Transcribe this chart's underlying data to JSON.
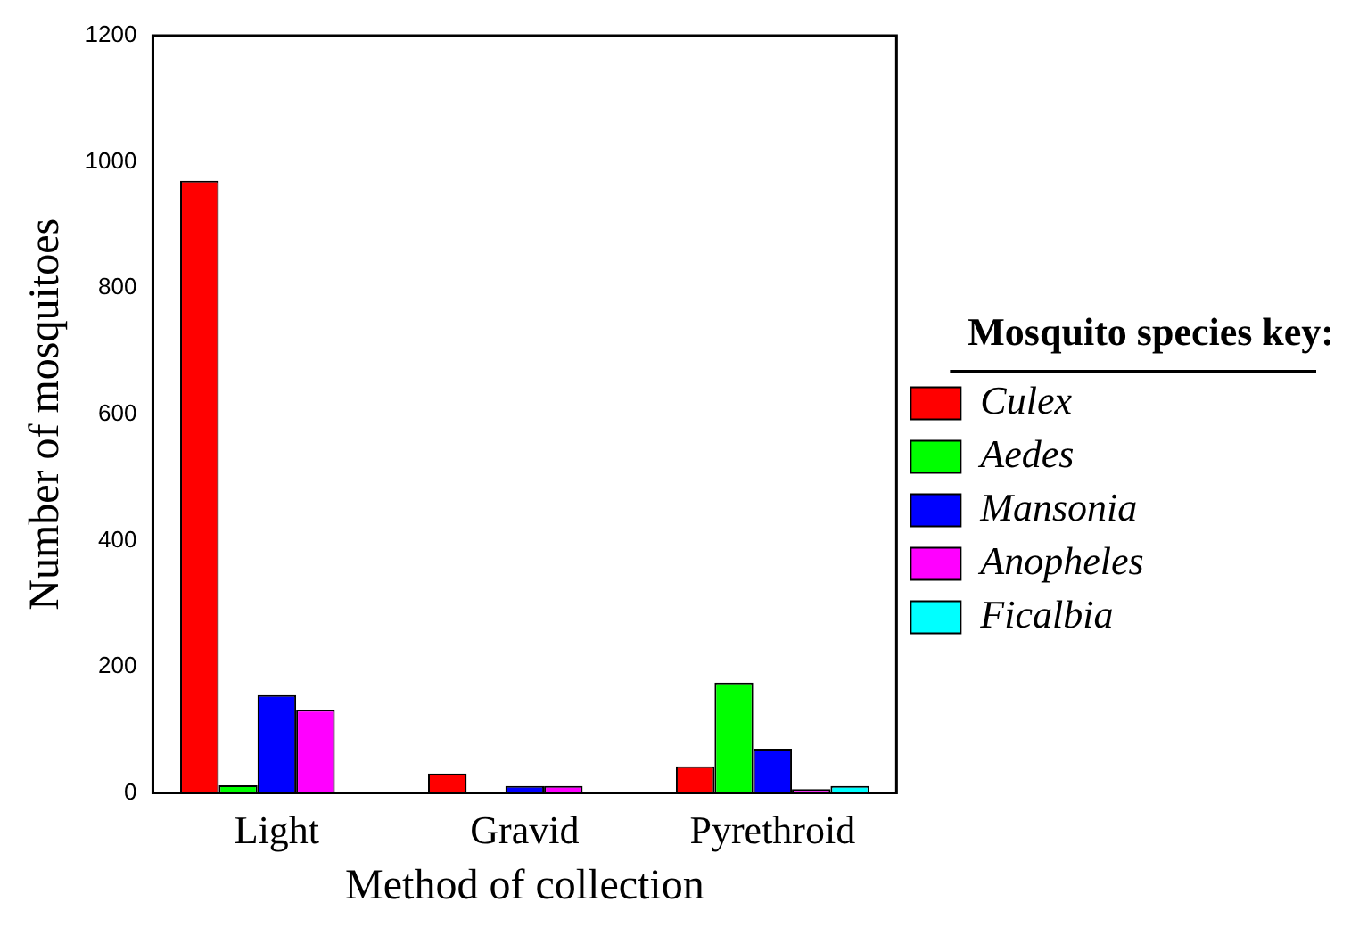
{
  "chart_data": {
    "type": "bar",
    "xlabel": "Method of collection",
    "ylabel": "Number of mosquitoes",
    "legend_title": "Mosquito species key:",
    "categories": [
      "Light",
      "Gravid",
      "Pyrethroid"
    ],
    "series": [
      {
        "name": "Culex",
        "color": "#ff0000",
        "values": [
          970,
          31,
          42
        ]
      },
      {
        "name": "Aedes",
        "color": "#00ff00",
        "values": [
          12,
          0,
          175
        ]
      },
      {
        "name": "Mansonia",
        "color": "#0000ff",
        "values": [
          155,
          11,
          70
        ]
      },
      {
        "name": "Anopheles",
        "color": "#ff00ff",
        "values": [
          132,
          11,
          6
        ]
      },
      {
        "name": "Ficalbia",
        "color": "#00ffff",
        "values": [
          0,
          0,
          11
        ]
      }
    ],
    "ylim": [
      0,
      1200
    ],
    "yticks": [
      0,
      200,
      400,
      600,
      800,
      1000,
      1200
    ],
    "grid": false,
    "legend": "right"
  }
}
